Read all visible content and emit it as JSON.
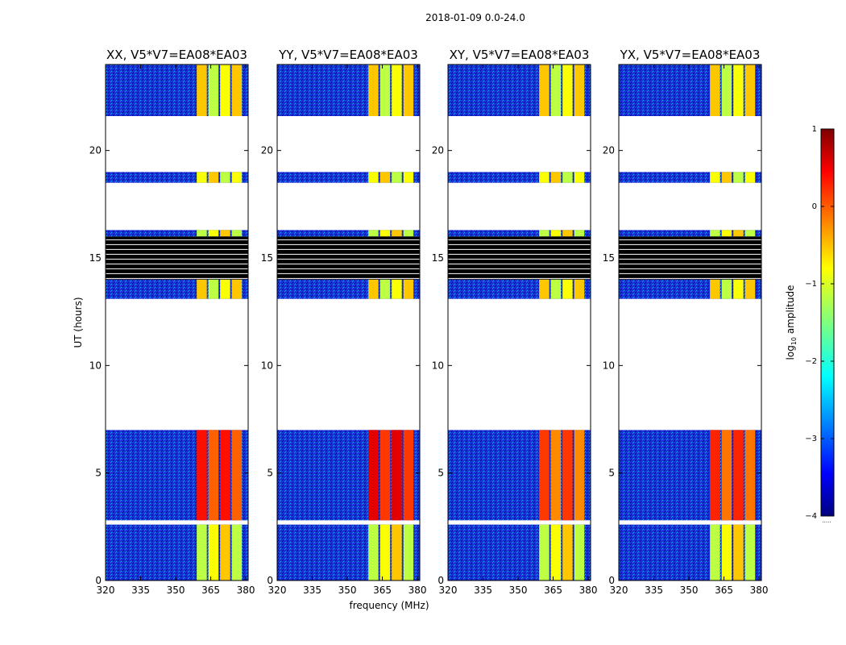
{
  "figure": {
    "suptitle": "2018-01-09 0.0-24.0",
    "ylabel": "UT (hours)",
    "xlabel": "frequency (MHz)"
  },
  "chart_data": {
    "type": "heatmap",
    "title": "2018-01-09 0.0-24.0",
    "xlabel": "frequency (MHz)",
    "ylabel": "UT (hours)",
    "xlim": [
      320,
      381
    ],
    "ylim": [
      0,
      24
    ],
    "x_ticks": [
      320,
      335,
      350,
      365,
      380
    ],
    "y_ticks": [
      0,
      5,
      10,
      15,
      20
    ],
    "panels": [
      {
        "title": "XX, V5*V7=EA08*EA03",
        "band_start": 359,
        "band_end": 379,
        "peak_log_amp": 0.3
      },
      {
        "title": "YY, V5*V7=EA08*EA03",
        "band_start": 359,
        "band_end": 379,
        "peak_log_amp": 0.5
      },
      {
        "title": "XY, V5*V7=EA08*EA03",
        "band_start": 359,
        "band_end": 379,
        "peak_log_amp": 0.1
      },
      {
        "title": "YX, V5*V7=EA08*EA03",
        "band_start": 359,
        "band_end": 379,
        "peak_log_amp": 0.2
      }
    ],
    "data_segments_ut": [
      [
        0,
        2.6
      ],
      [
        2.8,
        7.0
      ],
      [
        13.1,
        14.0
      ],
      [
        16.0,
        16.3
      ],
      [
        18.5,
        19.0
      ],
      [
        21.6,
        24.0
      ]
    ],
    "flagged_black_ut": [
      14.0,
      16.0
    ],
    "colorbar": {
      "label": "log10 amplitude",
      "label_main": "log",
      "label_sub": "10",
      "label_rest": " amplitude",
      "min": -4,
      "max": 1,
      "ticks": [
        1,
        0,
        -1,
        -2,
        -3,
        -4
      ],
      "tick_labels": [
        "1",
        "0",
        "−1",
        "−2",
        "−3",
        "−4"
      ],
      "colormap": "jet",
      "extra": "....."
    }
  }
}
